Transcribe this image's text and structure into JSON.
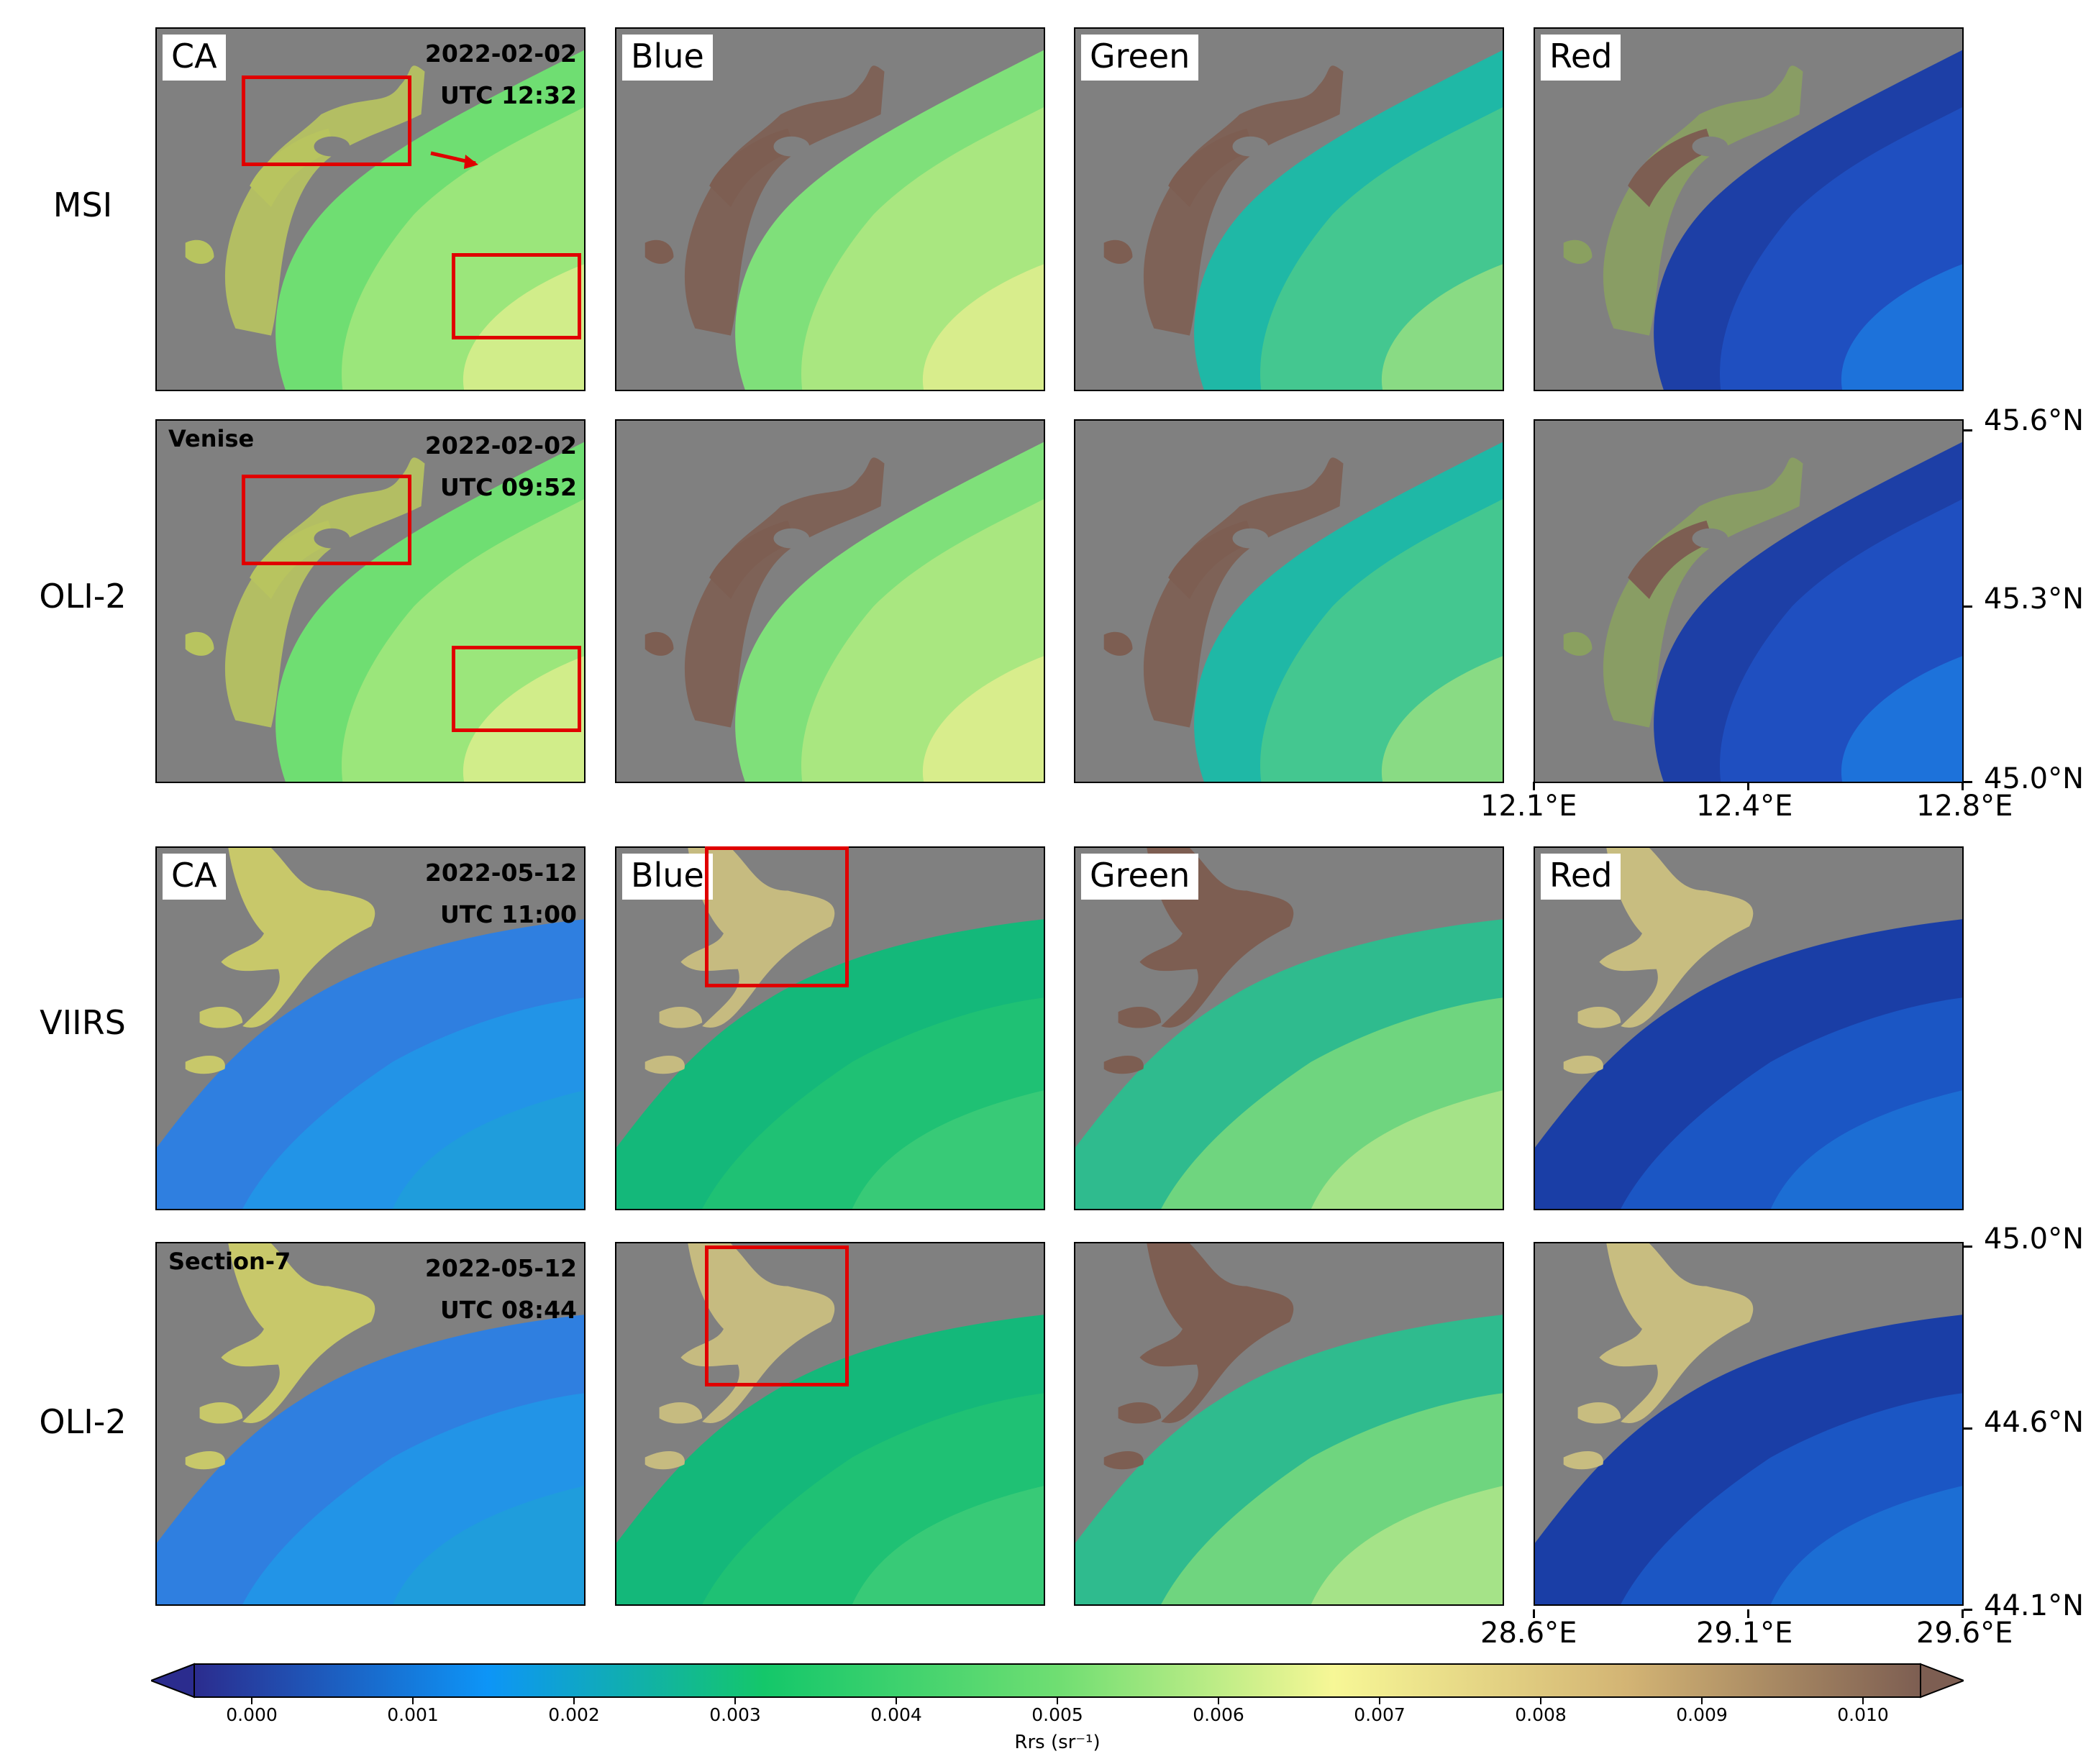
{
  "rows": [
    {
      "label": "MSI",
      "site": "",
      "date": "2022-02-02",
      "time": "UTC 12:32",
      "region": "venice"
    },
    {
      "label": "OLI-2",
      "site": "Venise",
      "date": "2022-02-02",
      "time": "UTC 09:52",
      "region": "venice"
    },
    {
      "label": "VIIRS",
      "site": "",
      "date": "2022-05-12",
      "time": "UTC 11:00",
      "region": "danube"
    },
    {
      "label": "OLI-2",
      "site": "Section-7",
      "date": "2022-05-12",
      "time": "UTC 08:44",
      "region": "danube"
    }
  ],
  "bands": [
    "CA",
    "Blue",
    "Green",
    "Red"
  ],
  "axes": {
    "venice": {
      "lat_ticks": [
        "45.6°N",
        "45.3°N",
        "45.0°N"
      ],
      "lon_ticks": [
        "12.1°E",
        "12.4°E",
        "12.8°E"
      ]
    },
    "danube": {
      "lat_ticks": [
        "45.0°N",
        "44.6°N",
        "44.1°N"
      ],
      "lon_ticks": [
        "28.6°E",
        "29.1°E",
        "29.6°E"
      ]
    }
  },
  "colorbar": {
    "label": "Rrs (sr⁻¹)",
    "ticks": [
      "0.000",
      "0.001",
      "0.002",
      "0.003",
      "0.004",
      "0.005",
      "0.006",
      "0.007",
      "0.008",
      "0.009",
      "0.010"
    ],
    "colors": [
      "#2b2c8e",
      "#0d95f7",
      "#14c76a",
      "#6fde72",
      "#f7f796",
      "#d3b474",
      "#7d5e52"
    ]
  },
  "colors": {
    "land": "#808080",
    "highlight_box": "#e00000"
  }
}
